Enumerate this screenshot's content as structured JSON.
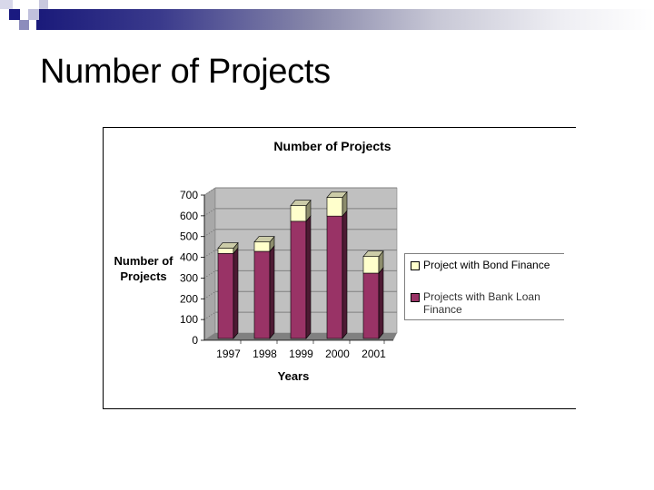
{
  "slide": {
    "title": "Number of Projects",
    "banner_colors": [
      "#1a1a7a",
      "#c8c8d6",
      "#ffffff"
    ]
  },
  "chart_data": {
    "type": "bar",
    "stacked": true,
    "three_d": true,
    "title": "Number of Projects",
    "xlabel": "Years",
    "ylabel": "Number of Projects",
    "categories": [
      "1997",
      "1998",
      "1999",
      "2000",
      "2001"
    ],
    "series": [
      {
        "name": "Projects with Bank Loan Finance",
        "color": "#993366",
        "values": [
          410,
          420,
          565,
          590,
          315
        ]
      },
      {
        "name": "Project with Bond Finance",
        "color": "#FFFFCC",
        "values": [
          25,
          45,
          75,
          90,
          80
        ]
      }
    ],
    "yticks": [
      0,
      100,
      200,
      300,
      400,
      500,
      600,
      700
    ],
    "ylim": [
      0,
      700
    ],
    "grid": true,
    "legend_position": "right",
    "legend": [
      "Project with Bond Finance",
      "Projects with Bank Loan Finance"
    ],
    "wall_color": "#C0C0C0",
    "floor_color": "#808080"
  }
}
